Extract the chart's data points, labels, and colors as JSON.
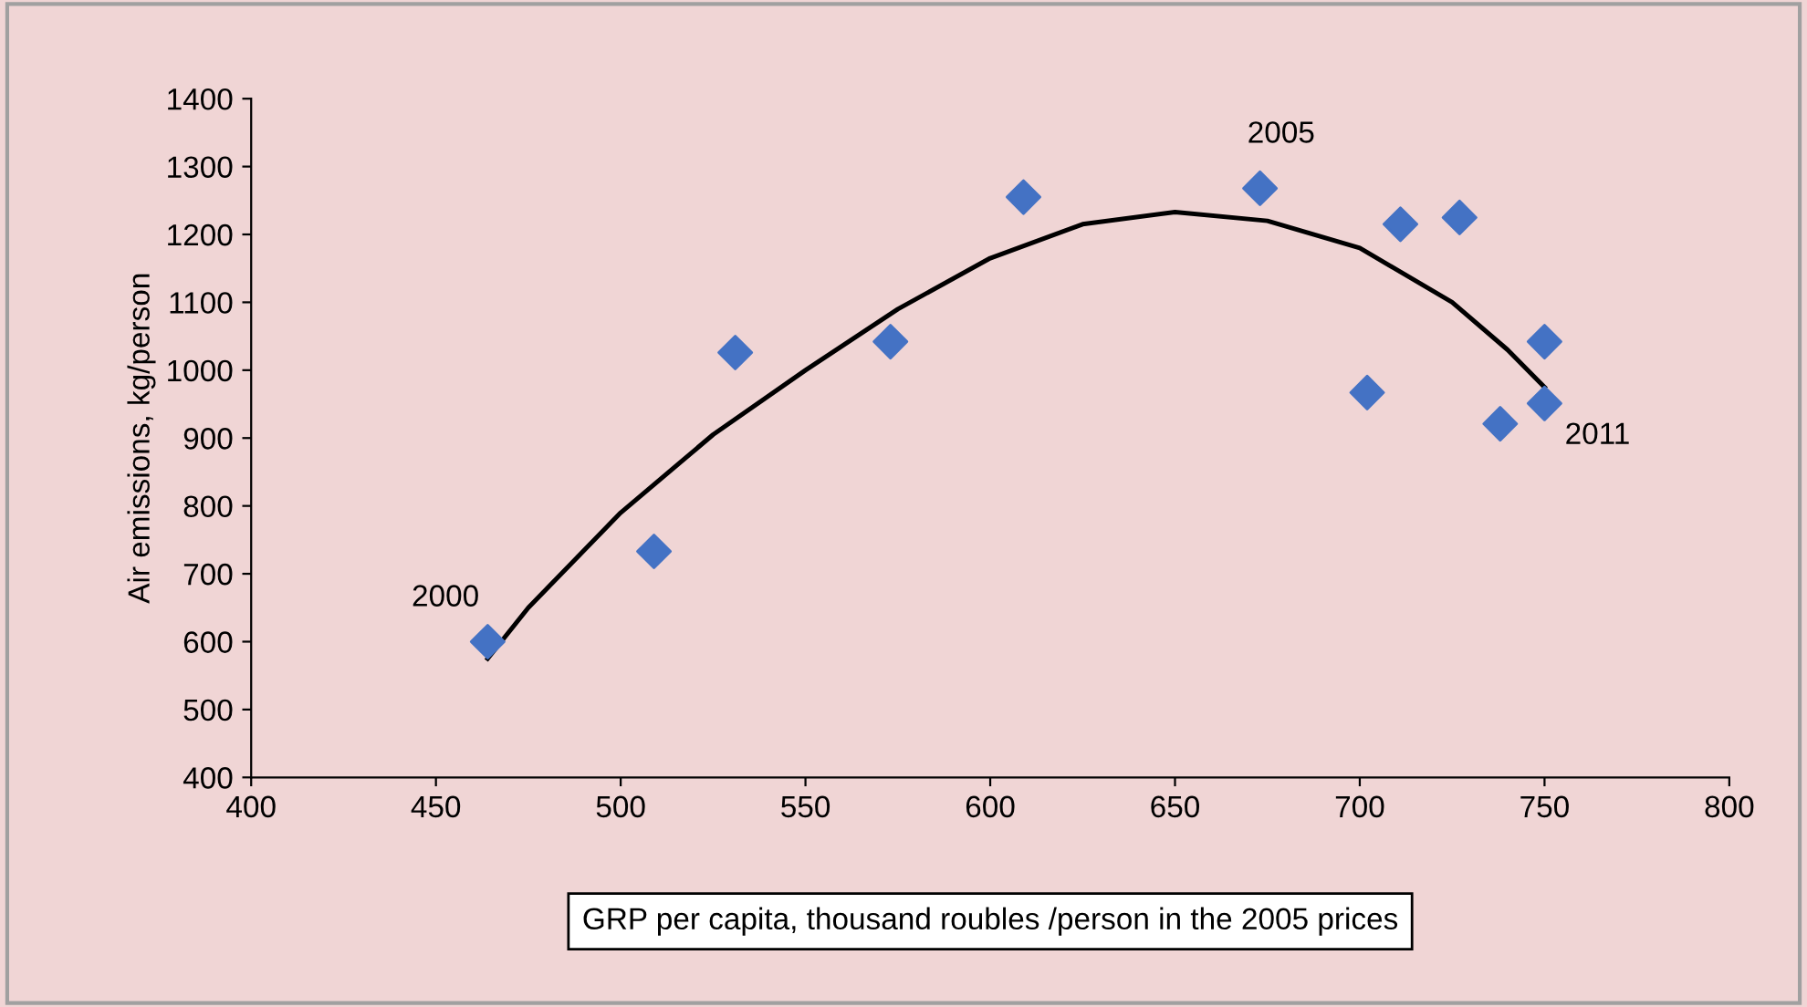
{
  "chart_data": {
    "type": "scatter",
    "xlabel": "GRP per capita, thousand roubles /person in the 2005 prices",
    "ylabel": "Air emissions, kg/person",
    "xlim": [
      400,
      800
    ],
    "xticks": [
      400,
      450,
      500,
      550,
      600,
      650,
      700,
      750,
      800
    ],
    "ylim": [
      400,
      1400
    ],
    "yticks": [
      400,
      500,
      600,
      700,
      800,
      900,
      1000,
      1100,
      1200,
      1300,
      1400
    ],
    "grid": false,
    "legend": false,
    "marker": "diamond",
    "series": [
      {
        "color": "#4472c4",
        "x": [
          464,
          509,
          531,
          573,
          609,
          673,
          702,
          711,
          727,
          738,
          750,
          750
        ],
        "values": [
          600,
          733,
          1026,
          1042,
          1255,
          1268,
          967,
          1215,
          1225,
          921,
          1042,
          951
        ]
      },
      {
        "type": "line",
        "color": "#000000",
        "marker": "none",
        "line_style": "solid",
        "x": [
          464,
          475,
          500,
          525,
          550,
          575,
          600,
          625,
          650,
          675,
          700,
          725,
          740,
          750
        ],
        "values": [
          575,
          650,
          790,
          905,
          1000,
          1090,
          1165,
          1215,
          1233,
          1220,
          1180,
          1100,
          1030,
          975
        ]
      }
    ],
    "annotations": [
      {
        "text": "2000",
        "x": 464,
        "y": 600
      },
      {
        "text": "2005",
        "x": 673,
        "y": 1268
      },
      {
        "text": "2011",
        "x": 750,
        "y": 951
      }
    ]
  }
}
